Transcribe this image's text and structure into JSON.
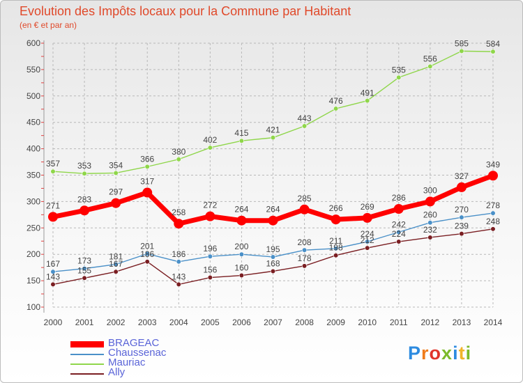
{
  "title": "Evolution des Impôts locaux pour la Commune par Habitant",
  "subtitle": "(en € et par an)",
  "logo_text": "Proxiti",
  "chart_data": {
    "type": "line",
    "title": "Evolution des Impôts locaux pour la Commune par Habitant",
    "subtitle": "(en € et par an)",
    "xlabel": "",
    "ylabel": "",
    "ylim": [
      100,
      600
    ],
    "yticks": [
      100,
      150,
      200,
      250,
      300,
      350,
      400,
      450,
      500,
      550,
      600
    ],
    "x": [
      "2000",
      "2001",
      "2002",
      "2003",
      "2004",
      "2005",
      "2006",
      "2007",
      "2008",
      "2009",
      "2010",
      "2011",
      "2012",
      "2013",
      "2014"
    ],
    "legend_position": "bottom-left",
    "series": [
      {
        "name": "Ally",
        "color": "#7a1e22",
        "emphasis": false,
        "values": [
          143,
          155,
          167,
          186,
          143,
          156,
          160,
          168,
          178,
          198,
          212,
          224,
          232,
          239,
          248
        ]
      },
      {
        "name": "Mauriac",
        "color": "#8fd64a",
        "emphasis": false,
        "values": [
          357,
          353,
          354,
          366,
          380,
          402,
          415,
          421,
          443,
          476,
          491,
          535,
          556,
          585,
          584
        ]
      },
      {
        "name": "Chaussenac",
        "color": "#4a90c8",
        "emphasis": false,
        "values": [
          167,
          173,
          181,
          201,
          186,
          196,
          200,
          195,
          208,
          211,
          224,
          242,
          260,
          270,
          278
        ]
      },
      {
        "name": "BRAGEAC",
        "color": "#ff0000",
        "emphasis": true,
        "values": [
          271,
          283,
          297,
          317,
          258,
          272,
          264,
          264,
          285,
          266,
          269,
          286,
          300,
          327,
          349
        ]
      }
    ],
    "legend_order": [
      "BRAGEAC",
      "Chaussenac",
      "Mauriac",
      "Ally"
    ]
  }
}
